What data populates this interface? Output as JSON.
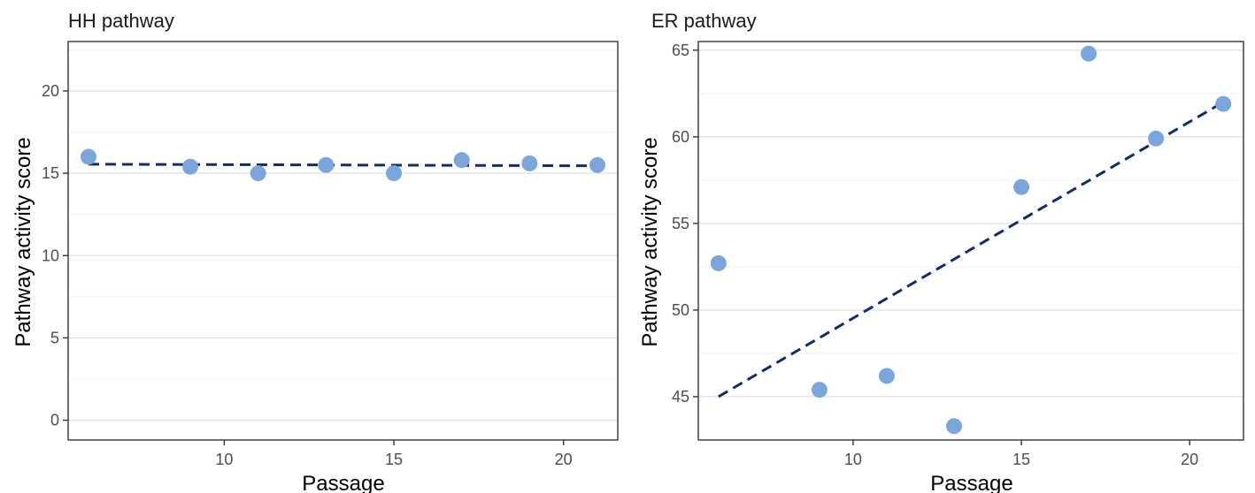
{
  "chart_data": [
    {
      "type": "scatter",
      "title": "HH pathway",
      "xlabel": "Passage",
      "ylabel": "Pathway activity score",
      "xlim": [
        5.4,
        21.6
      ],
      "ylim": [
        -1.2,
        23
      ],
      "xticks": [
        10,
        15,
        20
      ],
      "yticks": [
        0,
        5,
        10,
        15,
        20
      ],
      "minor_yticks": [
        2.5,
        7.5,
        12.5,
        17.5,
        22.5
      ],
      "grid": true,
      "x": [
        6,
        9,
        11,
        13,
        15,
        17,
        19,
        21
      ],
      "y": [
        16.0,
        15.4,
        15.0,
        15.5,
        15.0,
        15.8,
        15.6,
        15.5
      ],
      "trend": {
        "x": [
          6,
          21
        ],
        "y": [
          15.55,
          15.45
        ],
        "style": "dashed"
      },
      "colors": {
        "point": "#7ba6dc",
        "trend": "#102d66"
      }
    },
    {
      "type": "scatter",
      "title": "ER pathway",
      "xlabel": "Passage",
      "ylabel": "Pathway activity score",
      "xlim": [
        5.4,
        21.6
      ],
      "ylim": [
        42.5,
        65.5
      ],
      "xticks": [
        10,
        15,
        20
      ],
      "yticks": [
        45,
        50,
        55,
        60,
        65
      ],
      "minor_yticks": [
        47.5,
        52.5,
        57.5,
        62.5
      ],
      "grid": true,
      "x": [
        6,
        9,
        11,
        13,
        15,
        17,
        19,
        21
      ],
      "y": [
        52.7,
        45.4,
        46.2,
        43.3,
        57.1,
        64.8,
        59.9,
        61.9
      ],
      "trend": {
        "x": [
          6,
          21
        ],
        "y": [
          45.0,
          62.0
        ],
        "style": "dashed"
      },
      "colors": {
        "point": "#7ba6dc",
        "trend": "#102d66"
      }
    }
  ]
}
